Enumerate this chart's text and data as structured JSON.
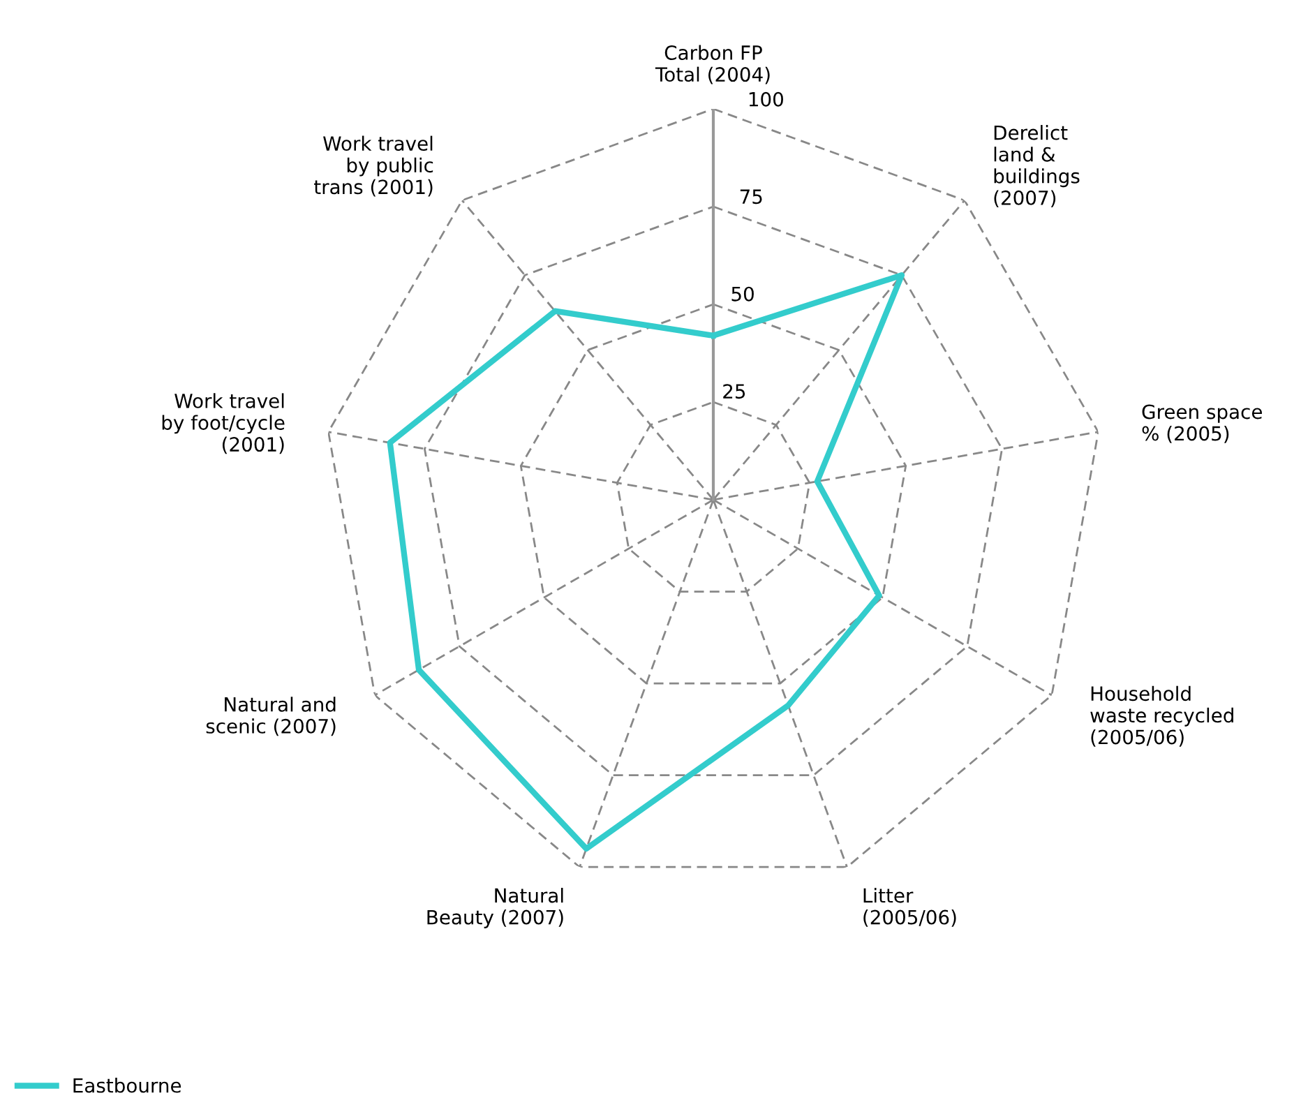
{
  "chart_data": {
    "type": "radar",
    "categories": [
      "Carbon FP\nTotal (2004)",
      "Derelict\nland &\nbuildings\n(2007)",
      "Green space\n% (2005)",
      "Household\nwaste recycled\n(2005/06)",
      "Litter\n(2005/06)",
      "Natural\nBeauty (2007)",
      "Natural and\nscenic (2007)",
      "Work travel\nby foot/cycle\n(2001)",
      "Work travel\nby public\ntrans (2001)"
    ],
    "series": [
      {
        "name": "Eastbourne",
        "color": "#33cccc",
        "values": [
          42,
          75,
          27,
          49,
          56,
          95,
          87,
          84,
          63
        ]
      }
    ],
    "ylim": [
      0,
      100
    ],
    "yticks": [
      25,
      50,
      75,
      100
    ],
    "grid": true,
    "legend": "bottom left"
  }
}
